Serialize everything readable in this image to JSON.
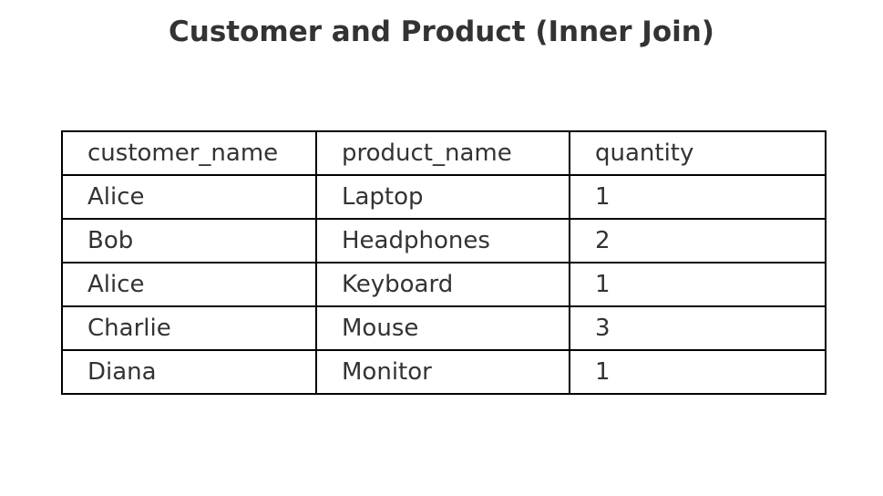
{
  "chart_data": {
    "type": "table",
    "title": "Customer and Product (Inner Join)",
    "columns": [
      "customer_name",
      "product_name",
      "quantity"
    ],
    "rows": [
      [
        "Alice",
        "Laptop",
        "1"
      ],
      [
        "Bob",
        "Headphones",
        "2"
      ],
      [
        "Alice",
        "Keyboard",
        "1"
      ],
      [
        "Charlie",
        "Mouse",
        "3"
      ],
      [
        "Diana",
        "Monitor",
        "1"
      ]
    ]
  },
  "colors": {
    "text": "#333333",
    "border": "#000000",
    "background": "#ffffff"
  }
}
